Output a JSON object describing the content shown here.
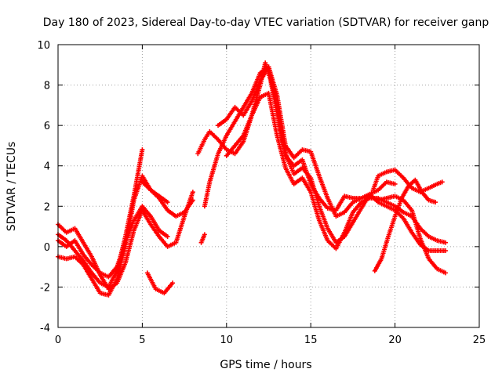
{
  "chart_data": {
    "type": "scatter",
    "title": "Day 180 of 2023, Sidereal Day-to-day VTEC variation (SDTVAR) for receiver ganp",
    "xlabel": "GPS time / hours",
    "ylabel": "SDTVAR / TECUs",
    "xlim": [
      0,
      25
    ],
    "ylim": [
      -4,
      10
    ],
    "xticks": [
      0,
      5,
      10,
      15,
      20,
      25
    ],
    "yticks": [
      -4,
      -2,
      0,
      2,
      4,
      6,
      8,
      10
    ],
    "grid": true,
    "marker": "+",
    "color": "#ff0000",
    "series": [
      {
        "name": "trace-a",
        "points": [
          [
            0,
            0.6
          ],
          [
            0.5,
            0.3
          ],
          [
            1,
            -0.2
          ],
          [
            1.5,
            -0.7
          ],
          [
            2,
            -1.3
          ],
          [
            2.5,
            -1.8
          ],
          [
            3,
            -2.0
          ],
          [
            3.5,
            -1.2
          ],
          [
            4,
            0.5
          ],
          [
            4.5,
            2.5
          ],
          [
            5,
            4.8
          ]
        ]
      },
      {
        "name": "trace-b",
        "points": [
          [
            0,
            -0.5
          ],
          [
            0.5,
            -0.6
          ],
          [
            1,
            -0.5
          ],
          [
            1.5,
            -0.9
          ],
          [
            2,
            -1.6
          ],
          [
            2.5,
            -2.3
          ],
          [
            3,
            -2.4
          ],
          [
            3.5,
            -1.6
          ],
          [
            4,
            0.0
          ],
          [
            4.5,
            2.3
          ],
          [
            5,
            3.5
          ],
          [
            5.5,
            2.8
          ],
          [
            6,
            2.5
          ],
          [
            6.5,
            2.2
          ]
        ]
      },
      {
        "name": "trace-c",
        "points": [
          [
            0,
            0.3
          ],
          [
            0.5,
            0.0
          ],
          [
            1,
            0.3
          ],
          [
            1.5,
            -0.4
          ],
          [
            2,
            -0.9
          ],
          [
            2.5,
            -1.3
          ],
          [
            3,
            -1.5
          ],
          [
            3.5,
            -1.0
          ],
          [
            4,
            0.2
          ],
          [
            4.5,
            1.3
          ],
          [
            5,
            2.0
          ],
          [
            5.5,
            1.5
          ],
          [
            6,
            0.8
          ],
          [
            6.5,
            0.5
          ]
        ]
      },
      {
        "name": "trace-d",
        "points": [
          [
            0,
            1.1
          ],
          [
            0.5,
            0.7
          ],
          [
            1,
            0.9
          ],
          [
            1.5,
            0.2
          ],
          [
            2,
            -0.5
          ],
          [
            2.5,
            -1.4
          ],
          [
            3,
            -2.1
          ],
          [
            3.5,
            -1.8
          ],
          [
            4,
            -0.8
          ],
          [
            4.5,
            0.8
          ],
          [
            5,
            1.8
          ],
          [
            5.5,
            1.1
          ],
          [
            6,
            0.5
          ],
          [
            6.5,
            0.0
          ],
          [
            7,
            0.2
          ],
          [
            7.5,
            1.5
          ],
          [
            8,
            2.7
          ]
        ]
      },
      {
        "name": "trace-e",
        "points": [
          [
            5.3,
            -1.3
          ],
          [
            5.8,
            -2.1
          ],
          [
            6.3,
            -2.3
          ],
          [
            6.8,
            -1.8
          ]
        ]
      },
      {
        "name": "trace-f",
        "points": [
          [
            5,
            3.2
          ],
          [
            5.5,
            2.8
          ],
          [
            6,
            2.4
          ],
          [
            6.5,
            1.8
          ],
          [
            7,
            1.5
          ],
          [
            7.5,
            1.7
          ],
          [
            8,
            2.3
          ]
        ]
      },
      {
        "name": "trace-g",
        "points": [
          [
            8.5,
            0.2
          ],
          [
            8.7,
            0.6
          ]
        ]
      },
      {
        "name": "trace-h",
        "points": [
          [
            8.3,
            4.6
          ],
          [
            8.7,
            5.3
          ],
          [
            9,
            5.7
          ],
          [
            9.5,
            5.3
          ],
          [
            10,
            4.8
          ],
          [
            10.5,
            4.6
          ],
          [
            11,
            5.2
          ],
          [
            11.5,
            6.5
          ],
          [
            12,
            8.0
          ],
          [
            12.3,
            9.1
          ],
          [
            12.6,
            8.3
          ],
          [
            13,
            6.6
          ],
          [
            13.3,
            5.3
          ],
          [
            13.6,
            4.4
          ],
          [
            14,
            3.6
          ],
          [
            14.5,
            3.9
          ],
          [
            15,
            3.4
          ],
          [
            15.5,
            2.0
          ],
          [
            16,
            0.9
          ],
          [
            16.5,
            0.2
          ],
          [
            17,
            0.5
          ],
          [
            17.5,
            1.2
          ],
          [
            18,
            1.9
          ],
          [
            18.5,
            2.6
          ],
          [
            19,
            2.8
          ],
          [
            19.5,
            3.2
          ],
          [
            20,
            3.1
          ]
        ]
      },
      {
        "name": "trace-i",
        "points": [
          [
            8.7,
            2.0
          ],
          [
            9,
            3.2
          ],
          [
            9.5,
            4.6
          ],
          [
            10,
            5.5
          ],
          [
            10.5,
            6.2
          ],
          [
            11,
            6.9
          ],
          [
            11.5,
            7.6
          ],
          [
            12,
            8.6
          ],
          [
            12.5,
            8.9
          ],
          [
            13,
            6.8
          ],
          [
            13.5,
            4.5
          ],
          [
            14,
            4.0
          ],
          [
            14.5,
            4.3
          ],
          [
            15,
            3.1
          ],
          [
            15.5,
            2.4
          ],
          [
            16,
            1.9
          ],
          [
            16.5,
            1.8
          ],
          [
            17,
            2.5
          ],
          [
            17.5,
            2.4
          ],
          [
            18,
            2.4
          ],
          [
            18.5,
            2.5
          ],
          [
            19,
            2.3
          ],
          [
            19.5,
            2.4
          ],
          [
            20,
            2.5
          ],
          [
            20.5,
            2.3
          ],
          [
            21,
            1.8
          ],
          [
            21.5,
            0.4
          ],
          [
            22,
            -0.6
          ],
          [
            22.5,
            -1.1
          ],
          [
            23,
            -1.3
          ]
        ]
      },
      {
        "name": "trace-j",
        "points": [
          [
            9.5,
            6.0
          ],
          [
            10,
            6.3
          ],
          [
            10.5,
            6.9
          ],
          [
            11,
            6.5
          ],
          [
            11.5,
            7.2
          ],
          [
            12,
            8.2
          ],
          [
            12.5,
            8.9
          ],
          [
            13,
            7.5
          ],
          [
            13.5,
            5.0
          ],
          [
            14,
            4.4
          ],
          [
            14.5,
            4.8
          ],
          [
            15,
            4.7
          ],
          [
            15.5,
            3.5
          ],
          [
            16,
            2.4
          ],
          [
            16.5,
            1.5
          ],
          [
            17,
            1.7
          ],
          [
            17.5,
            2.2
          ],
          [
            18,
            2.4
          ],
          [
            18.5,
            2.6
          ],
          [
            19,
            2.2
          ],
          [
            19.5,
            2.0
          ],
          [
            20,
            1.8
          ],
          [
            20.5,
            1.4
          ],
          [
            21,
            0.7
          ],
          [
            21.5,
            0.1
          ],
          [
            22,
            -0.2
          ],
          [
            22.5,
            -0.2
          ],
          [
            23,
            -0.2
          ]
        ]
      },
      {
        "name": "trace-k",
        "points": [
          [
            10,
            4.5
          ],
          [
            10.5,
            5.0
          ],
          [
            11,
            5.5
          ],
          [
            11.5,
            6.5
          ],
          [
            12,
            7.4
          ],
          [
            12.5,
            7.6
          ],
          [
            13,
            5.5
          ],
          [
            13.5,
            3.9
          ],
          [
            14,
            3.1
          ],
          [
            14.5,
            3.4
          ],
          [
            15,
            2.7
          ],
          [
            15.5,
            1.3
          ],
          [
            16,
            0.3
          ],
          [
            16.5,
            -0.1
          ],
          [
            17,
            0.7
          ],
          [
            17.5,
            1.7
          ],
          [
            18,
            2.2
          ],
          [
            18.5,
            2.4
          ],
          [
            19,
            2.4
          ],
          [
            19.5,
            2.2
          ],
          [
            20,
            2.0
          ],
          [
            20.5,
            1.7
          ],
          [
            21,
            1.5
          ],
          [
            21.5,
            0.9
          ],
          [
            22,
            0.5
          ],
          [
            22.5,
            0.3
          ],
          [
            23,
            0.2
          ]
        ]
      },
      {
        "name": "trace-l",
        "points": [
          [
            18.7,
            2.8
          ],
          [
            19,
            3.5
          ],
          [
            19.5,
            3.7
          ],
          [
            20,
            3.8
          ],
          [
            20.5,
            3.4
          ],
          [
            21,
            2.9
          ],
          [
            21.5,
            2.7
          ],
          [
            22,
            2.9
          ],
          [
            22.5,
            3.1
          ],
          [
            22.8,
            3.2
          ]
        ]
      },
      {
        "name": "trace-m",
        "points": [
          [
            18.8,
            -1.2
          ],
          [
            19.2,
            -0.6
          ],
          [
            19.6,
            0.5
          ],
          [
            20,
            1.5
          ],
          [
            20.4,
            2.4
          ],
          [
            20.8,
            3.0
          ],
          [
            21.2,
            3.3
          ],
          [
            21.6,
            2.7
          ],
          [
            22,
            2.3
          ],
          [
            22.4,
            2.2
          ]
        ]
      }
    ]
  }
}
